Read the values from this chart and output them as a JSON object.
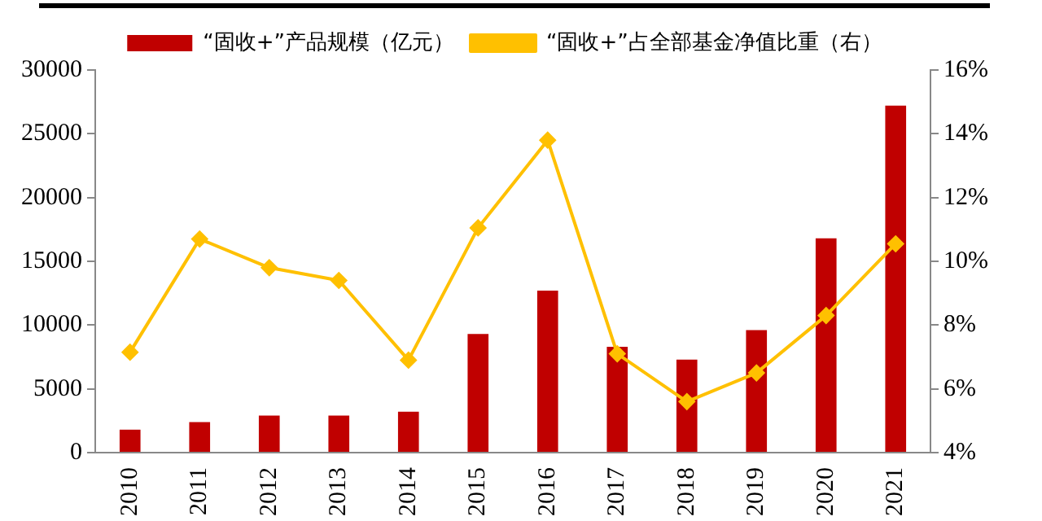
{
  "chart_data": {
    "type": "bar",
    "categories": [
      "2010",
      "2011",
      "2012",
      "2013",
      "2014",
      "2015",
      "2016",
      "2017",
      "2018",
      "2019",
      "2020",
      "2021"
    ],
    "series": [
      {
        "name": "“固收+”产品规模（亿元）",
        "color": "#c00000",
        "values": [
          1800,
          2400,
          2900,
          2900,
          3200,
          9300,
          12700,
          8300,
          7300,
          9600,
          16800,
          27200
        ]
      },
      {
        "name": "“固收+”占全部基金净值比重（右）",
        "type": "line",
        "axis": "y2",
        "color": "#ffc000",
        "marker": "diamond",
        "values": [
          7.15,
          10.7,
          9.8,
          9.4,
          6.9,
          11.05,
          13.8,
          7.1,
          5.6,
          6.5,
          8.3,
          10.55
        ]
      }
    ],
    "ylim": [
      0,
      30000
    ],
    "yticks": [
      0,
      5000,
      10000,
      15000,
      20000,
      25000,
      30000
    ],
    "y2lim": [
      4,
      16
    ],
    "y2ticks": [
      {
        "value": 4,
        "label": "4%"
      },
      {
        "value": 6,
        "label": "6%"
      },
      {
        "value": 8,
        "label": "8%"
      },
      {
        "value": 10,
        "label": "10%"
      },
      {
        "value": 12,
        "label": "12%"
      },
      {
        "value": 14,
        "label": "14%"
      },
      {
        "value": 16,
        "label": "16%"
      }
    ],
    "grid": false,
    "legend": "top"
  }
}
